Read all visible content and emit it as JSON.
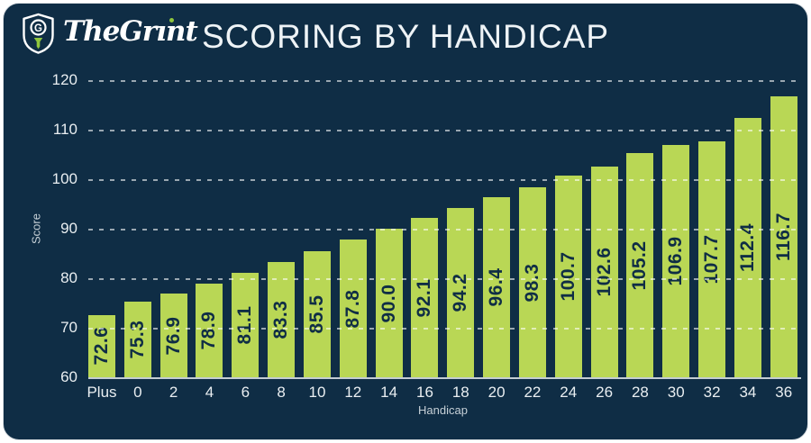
{
  "brand": {
    "name": "TheGrint",
    "monogram": "G"
  },
  "header": {
    "title": "SCORING BY HANDICAP"
  },
  "chart_data": {
    "type": "bar",
    "title": "SCORING BY HANDICAP",
    "xlabel": "Handicap",
    "ylabel": "Score",
    "categories": [
      "Plus",
      "0",
      "2",
      "4",
      "6",
      "8",
      "10",
      "12",
      "14",
      "16",
      "18",
      "20",
      "22",
      "24",
      "26",
      "28",
      "30",
      "32",
      "34",
      "36"
    ],
    "values": [
      72.6,
      75.3,
      76.9,
      78.9,
      81.1,
      83.3,
      85.5,
      87.8,
      90.0,
      92.1,
      94.2,
      96.4,
      98.3,
      100.7,
      102.6,
      105.2,
      106.9,
      107.7,
      112.4,
      116.7
    ],
    "ylim": [
      60,
      120
    ],
    "yticks": [
      60,
      70,
      80,
      90,
      100,
      110,
      120
    ],
    "grid": "horizontal-dashed-over-bars",
    "legend": "none",
    "value_label_decimals": 1,
    "value_label_style": "rotated-90-inside-bar",
    "colors": {
      "background": "#0f2d45",
      "bar": "#b9d755",
      "gridline": "rgba(255,255,255,0.58)",
      "tick_text": "#e9eef1",
      "value_text": "#0f2d45",
      "accent_green": "#8fc63d",
      "title_text": "#eef3f6"
    }
  }
}
